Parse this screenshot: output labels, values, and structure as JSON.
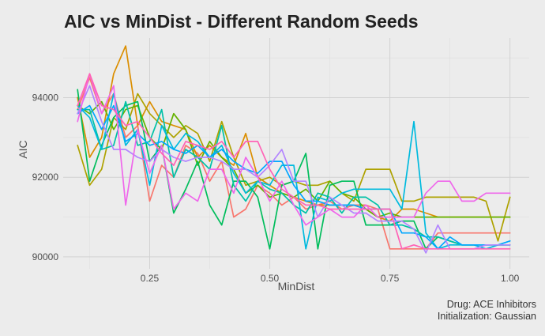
{
  "title": "AIC vs MinDist - Different Random Seeds",
  "caption": [
    "Drug: ACE Inhibitors",
    "Initialization: Gaussian"
  ],
  "chart_data": {
    "type": "line",
    "title": "AIC vs MinDist - Different Random Seeds",
    "xlabel": "MinDist",
    "ylabel": "AIC",
    "xlim": [
      0.07,
      1.04
    ],
    "ylim": [
      89700,
      95500
    ],
    "x_ticks": [
      0.25,
      0.5,
      0.75,
      1.0
    ],
    "x_tick_labels": [
      "0.25",
      "0.50",
      "0.75",
      "1.00"
    ],
    "y_ticks": [
      90000,
      92000,
      94000
    ],
    "y_tick_labels": [
      "90000",
      "92000",
      "94000"
    ],
    "grid": true,
    "legend": "none",
    "x": [
      0.1,
      0.125,
      0.15,
      0.175,
      0.2,
      0.225,
      0.25,
      0.275,
      0.3,
      0.325,
      0.35,
      0.375,
      0.4,
      0.425,
      0.45,
      0.475,
      0.5,
      0.525,
      0.55,
      0.575,
      0.6,
      0.625,
      0.65,
      0.675,
      0.7,
      0.725,
      0.75,
      0.775,
      0.8,
      0.825,
      0.85,
      0.875,
      0.9,
      0.925,
      0.95,
      0.975,
      1.0
    ],
    "series": [
      {
        "color": "#F8766D",
        "values": [
          93700,
          94500,
          93600,
          94100,
          93000,
          93300,
          91400,
          92300,
          92000,
          92800,
          92600,
          91900,
          92400,
          91000,
          91200,
          91800,
          91600,
          91300,
          91500,
          91200,
          91300,
          91400,
          91200,
          91300,
          91300,
          91200,
          90200,
          90200,
          90200,
          90200,
          90600,
          90600,
          90600,
          90600,
          90600,
          90600,
          90600
        ]
      },
      {
        "color": "#DB8E00",
        "values": [
          94000,
          92500,
          93000,
          94600,
          95300,
          93300,
          93900,
          93400,
          93300,
          93200,
          92500,
          92800,
          92500,
          92300,
          93100,
          92000,
          91800,
          91600,
          91500,
          91400,
          91300,
          91300,
          91300,
          91300,
          91200,
          91000,
          90900,
          91200,
          91200,
          91100,
          91000,
          91000,
          91000,
          91000,
          91000,
          91000,
          91000
        ]
      },
      {
        "color": "#AEA200",
        "values": [
          92800,
          91800,
          92200,
          93500,
          93200,
          94100,
          93600,
          93300,
          93000,
          93300,
          93100,
          92400,
          93400,
          92500,
          91800,
          91900,
          92000,
          91800,
          91900,
          91800,
          91800,
          91900,
          91600,
          91400,
          92200,
          92200,
          92200,
          91400,
          91400,
          91500,
          91500,
          91500,
          91500,
          91500,
          91400,
          90400,
          91500
        ]
      },
      {
        "color": "#64B200",
        "values": [
          93800,
          93600,
          93900,
          93200,
          93700,
          93800,
          93000,
          92700,
          93600,
          93200,
          92300,
          92900,
          92500,
          92200,
          91600,
          91800,
          91500,
          91600,
          91500,
          91700,
          91400,
          91900,
          91600,
          91500,
          91200,
          91000,
          91100,
          91000,
          91000,
          91000,
          91000,
          91000,
          91000,
          91000,
          91000,
          91000,
          91000
        ]
      },
      {
        "color": "#00BD5C",
        "values": [
          94200,
          91900,
          92800,
          93500,
          93800,
          93900,
          92400,
          92800,
          91100,
          91700,
          92400,
          91300,
          90800,
          91900,
          91900,
          91500,
          90200,
          91800,
          91900,
          92600,
          90200,
          91800,
          91900,
          91900,
          90800,
          90800,
          90800,
          90900,
          90900,
          90200,
          90500,
          90400,
          90300,
          90300,
          90300,
          90300,
          90300
        ]
      },
      {
        "color": "#00C1A7",
        "values": [
          93700,
          93700,
          92700,
          92800,
          93900,
          92800,
          92900,
          93700,
          92000,
          92700,
          92500,
          92200,
          93300,
          91800,
          91400,
          91900,
          91700,
          91600,
          91300,
          91100,
          91600,
          91500,
          91100,
          91500,
          91500,
          91300,
          90800,
          90800,
          90700,
          90500,
          90500,
          90400,
          90300,
          90300,
          90300,
          90300,
          90300
        ]
      },
      {
        "color": "#00BADE",
        "values": [
          93800,
          93500,
          92700,
          94100,
          92800,
          93200,
          91800,
          93300,
          92700,
          93100,
          92900,
          92500,
          92800,
          92100,
          91600,
          91900,
          91800,
          92300,
          92300,
          90200,
          91500,
          91400,
          91600,
          91700,
          91700,
          91700,
          91700,
          91200,
          93400,
          90600,
          90200,
          90300,
          90300,
          90300,
          90200,
          90300,
          90300
        ]
      },
      {
        "color": "#00A6FF",
        "values": [
          93600,
          93800,
          93200,
          93800,
          92900,
          93100,
          92800,
          92900,
          92700,
          92600,
          92800,
          92500,
          92700,
          92400,
          92200,
          92100,
          92400,
          92400,
          91800,
          91400,
          91400,
          91300,
          91300,
          91300,
          91200,
          91200,
          91200,
          90600,
          90600,
          90500,
          90200,
          90500,
          90300,
          90300,
          90300,
          90300,
          90400
        ]
      },
      {
        "color": "#B385FF",
        "values": [
          93600,
          94300,
          93400,
          92700,
          92700,
          92500,
          92400,
          92700,
          92500,
          92400,
          92500,
          92500,
          92400,
          92200,
          92200,
          92000,
          92300,
          92700,
          91900,
          91900,
          91000,
          91500,
          91300,
          91100,
          91100,
          90900,
          90900,
          90900,
          90700,
          90100,
          90800,
          90200,
          90200,
          90200,
          90300,
          90300,
          90300
        ]
      },
      {
        "color": "#EF67EB",
        "values": [
          93400,
          94600,
          93600,
          94300,
          91300,
          93200,
          92100,
          92800,
          91200,
          91600,
          91400,
          92200,
          92200,
          91600,
          92500,
          92000,
          91400,
          91900,
          91300,
          90800,
          91000,
          91200,
          91000,
          91000,
          91300,
          91000,
          91000,
          91000,
          91000,
          91600,
          91900,
          91900,
          91400,
          91400,
          91600,
          91600,
          91600
        ]
      },
      {
        "color": "#FF63B6",
        "values": [
          93800,
          94600,
          93800,
          93700,
          93300,
          93400,
          93000,
          92600,
          92300,
          92900,
          92800,
          92700,
          92900,
          92500,
          92900,
          92900,
          92200,
          91700,
          91500,
          91300,
          91300,
          91200,
          91200,
          91200,
          91200,
          91200,
          91200,
          90200,
          90300,
          90200,
          90200,
          90200,
          90200,
          90200,
          90200,
          90200,
          90200
        ]
      }
    ]
  }
}
